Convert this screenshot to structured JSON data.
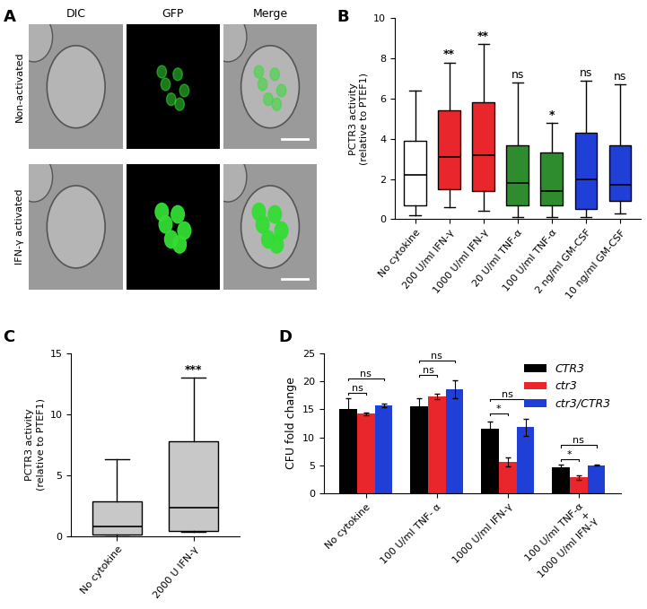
{
  "image_panel": {
    "panel": "A",
    "columns": [
      "DIC",
      "GFP",
      "Merge"
    ],
    "rows": [
      "Non-activated",
      "IFN-γ activated"
    ]
  },
  "chart_data": [
    {
      "panel": "B",
      "type": "box",
      "ylabel": "PCTR3 activity\n(relative to PTEF1)",
      "categories": [
        "No cytokine",
        "200 U/ml IFN-γ",
        "1000 U/ml IFN-γ",
        "20 U/ml TNF-α",
        "100 U/ml TNF-α",
        "2 ng/ml GM-CSF",
        "10 ng/ml GM-CSF"
      ],
      "colors": [
        "#ffffff",
        "#e8262b",
        "#e8262b",
        "#2e8b2e",
        "#2e8b2e",
        "#1f3fd6",
        "#1f3fd6"
      ],
      "boxes": [
        {
          "whislo": 0.2,
          "q1": 0.7,
          "med": 2.2,
          "q3": 3.9,
          "whishi": 6.4
        },
        {
          "whislo": 0.6,
          "q1": 1.5,
          "med": 3.1,
          "q3": 5.4,
          "whishi": 7.8
        },
        {
          "whislo": 0.4,
          "q1": 1.4,
          "med": 3.2,
          "q3": 5.8,
          "whishi": 8.7
        },
        {
          "whislo": 0.1,
          "q1": 0.7,
          "med": 1.8,
          "q3": 3.7,
          "whishi": 6.8
        },
        {
          "whislo": 0.1,
          "q1": 0.7,
          "med": 1.4,
          "q3": 3.3,
          "whishi": 4.8
        },
        {
          "whislo": 0.1,
          "q1": 0.5,
          "med": 2.0,
          "q3": 4.3,
          "whishi": 6.9
        },
        {
          "whislo": 0.3,
          "q1": 0.9,
          "med": 1.7,
          "q3": 3.7,
          "whishi": 6.7
        }
      ],
      "significance": [
        null,
        "**",
        "**",
        "ns",
        "*",
        "ns",
        "ns"
      ],
      "ylim": [
        0,
        10
      ],
      "yticks": [
        0,
        2,
        4,
        6,
        8,
        10
      ]
    },
    {
      "panel": "C",
      "type": "box",
      "ylabel": "PCTR3 activity\n(relative to PTEF1)",
      "categories": [
        "No cytokine",
        "2000 U IFN-γ"
      ],
      "colors": [
        "#c8c8c8",
        "#c8c8c8"
      ],
      "boxes": [
        {
          "whislo": 0.0,
          "q1": 0.1,
          "med": 0.8,
          "q3": 2.8,
          "whishi": 6.3
        },
        {
          "whislo": 0.3,
          "q1": 0.4,
          "med": 2.3,
          "q3": 7.8,
          "whishi": 13.0
        }
      ],
      "significance": [
        null,
        "***"
      ],
      "ylim": [
        0,
        15
      ],
      "yticks": [
        0,
        5,
        10,
        15
      ]
    },
    {
      "panel": "D",
      "type": "bar",
      "ylabel": "CFU fold change",
      "categories": [
        "No cytokine",
        "100 U/ml TNF- α",
        "1000 U/ml IFN-γ",
        "100 U/ml TNF-α\n+\n1000 U/ml IFN-γ"
      ],
      "series": [
        {
          "name": "CTR3",
          "color": "#000000",
          "values": [
            15.1,
            15.6,
            11.6,
            4.7
          ],
          "errors": [
            1.9,
            1.4,
            1.2,
            0.4
          ]
        },
        {
          "name": "ctr3",
          "color": "#e8262b",
          "values": [
            14.2,
            17.3,
            5.6,
            2.8
          ],
          "errors": [
            0.2,
            0.5,
            0.8,
            0.4
          ]
        },
        {
          "name": "ctr3/CTR3",
          "color": "#1f3fd6",
          "values": [
            15.7,
            18.6,
            11.8,
            5.0
          ],
          "errors": [
            0.3,
            1.6,
            1.5,
            0.1
          ]
        }
      ],
      "comparisons": [
        {
          "category": "No cytokine",
          "pair": [
            "CTR3",
            "ctr3"
          ],
          "label": "ns"
        },
        {
          "category": "No cytokine",
          "pair": [
            "CTR3",
            "ctr3/CTR3"
          ],
          "label": "ns"
        },
        {
          "category": "100 U/ml TNF- α",
          "pair": [
            "CTR3",
            "ctr3"
          ],
          "label": "ns"
        },
        {
          "category": "100 U/ml TNF- α",
          "pair": [
            "CTR3",
            "ctr3/CTR3"
          ],
          "label": "ns"
        },
        {
          "category": "1000 U/ml IFN-γ",
          "pair": [
            "CTR3",
            "ctr3"
          ],
          "label": "*"
        },
        {
          "category": "1000 U/ml IFN-γ",
          "pair": [
            "CTR3",
            "ctr3/CTR3"
          ],
          "label": "ns"
        },
        {
          "category": "100 U/ml TNF-α\n+\n1000 U/ml IFN-γ",
          "pair": [
            "CTR3",
            "ctr3"
          ],
          "label": "*"
        },
        {
          "category": "100 U/ml TNF-α\n+\n1000 U/ml IFN-γ",
          "pair": [
            "CTR3",
            "ctr3/CTR3"
          ],
          "label": "ns"
        }
      ],
      "legend": "upper right",
      "ylim": [
        0,
        25
      ],
      "yticks": [
        0,
        5,
        10,
        15,
        20,
        25
      ]
    }
  ]
}
